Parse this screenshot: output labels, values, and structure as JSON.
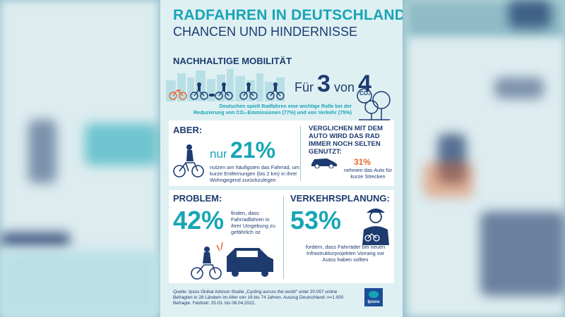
{
  "poster": {
    "title_line1": "RADFAHREN IN DEUTSCHLAND:",
    "title_line2": "CHANCEN UND HINDERNISSE",
    "section1": {
      "heading": "NACHHALTIGE MOBILITÄT",
      "stat_prefix": "Für",
      "stat_a": "3",
      "stat_mid": "von",
      "stat_b": "4",
      "co2_label": "CO₂",
      "caption": "Deutschen spielt Radfahren eine wichtige Rolle bei der Reduzierung von CO₂-Emmissionen (77%) und von Verkehr (75%)"
    },
    "section2": {
      "heading": "ABER:",
      "pct_prefix": "nur",
      "pct": "21%",
      "text": "nutzen am häufigsten das Fahrrad, um kurze Entfernungen (bis 2 km) in ihrer Wohngegend zurückzulegen",
      "right_heading": "VERGLICHEN MIT DEM AUTO WIRD DAS RAD IMMER NOCH SELTEN GENUTZT:",
      "right_pct": "31%",
      "right_text": "nehmen das Auto für kurze Strecken"
    },
    "section3": {
      "left_heading": "PROBLEM:",
      "left_pct": "42%",
      "left_text": "finden, dass Fahrradfahren in ihrer Umgebung zu gefährlich ist",
      "right_heading": "VERKEHRSPLANUNG:",
      "right_pct": "53%",
      "right_text": "fordern, dass Fahrräder bei neuen Infrastrukturprojekten Vorrang vor Autos haben sollten"
    },
    "source": "Quelle: Ipsos Global Advisor-Studie „Cycling across the world“ unter 20.057 online Befragten in 28 Ländern im Alter von 16 bis 74 Jahren. Auszug Deutschland: n=1.000 Befragte. Feldzeit: 25.03. bis 08.04.2022.",
    "logo_text": "Ipsos"
  },
  "colors": {
    "teal": "#17a5b5",
    "navy": "#1d3b6f",
    "orange": "#e4682c",
    "poster_bg": "#dff0f3"
  }
}
